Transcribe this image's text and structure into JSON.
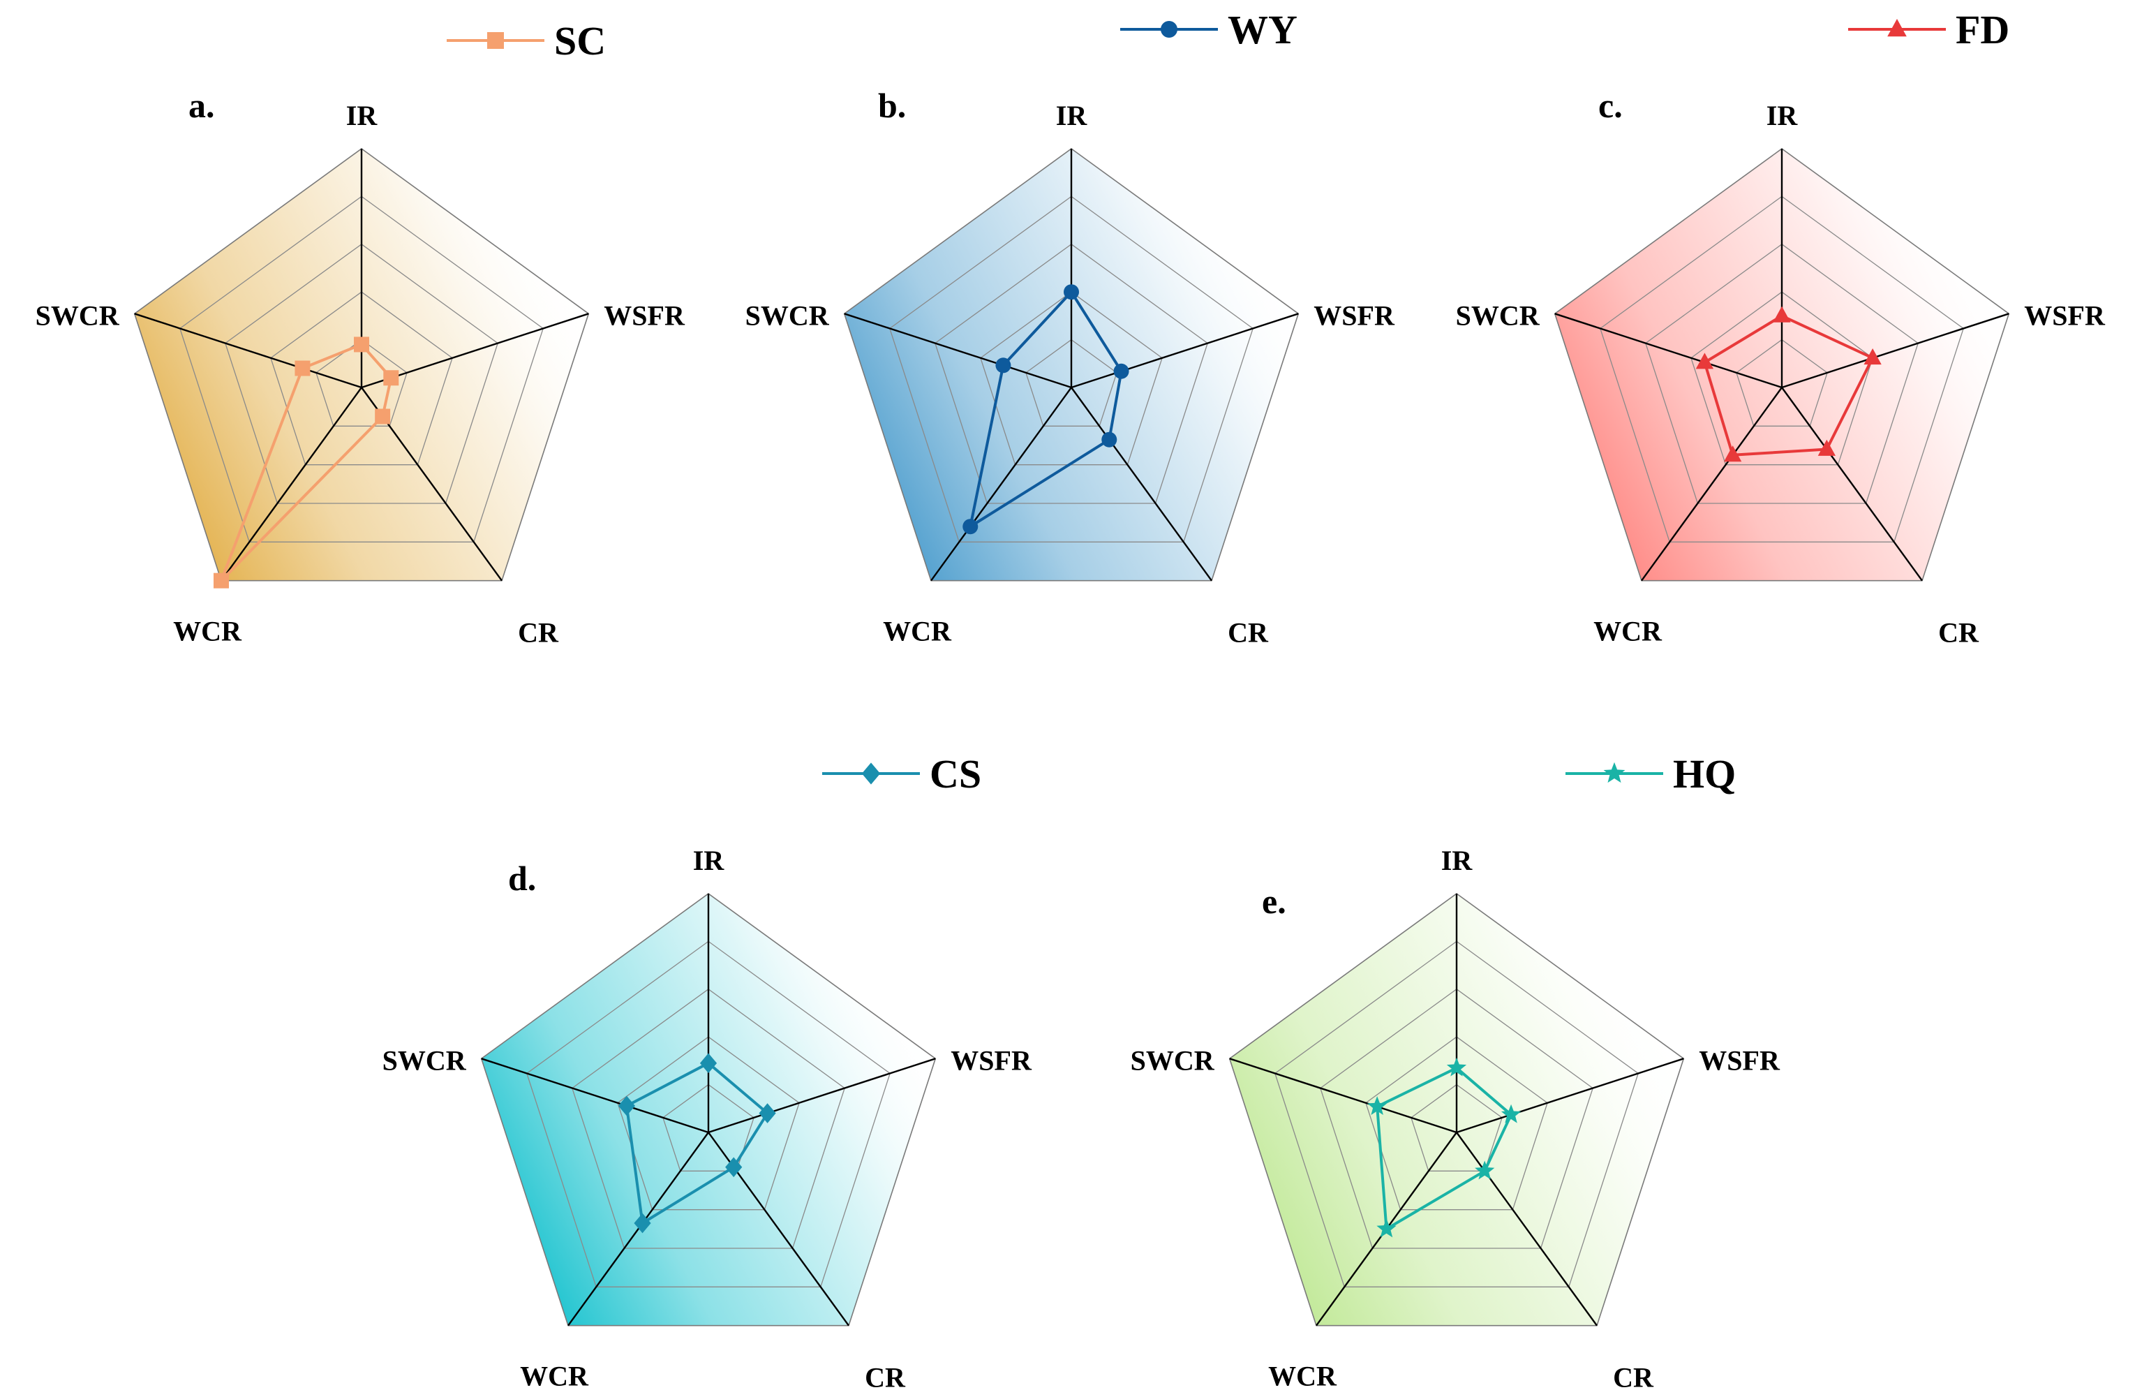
{
  "figure": {
    "axes": [
      "IR",
      "WSFR",
      "CR",
      "WCR",
      "SWCR"
    ],
    "rings": 5,
    "max_value": 5
  },
  "chart_data": [
    {
      "type": "radar",
      "panel": "a.",
      "series_name": "SC",
      "color": "#f5a06e",
      "marker": "square",
      "fill_color": "#e0a838",
      "axes": [
        "IR",
        "WSFR",
        "CR",
        "WCR",
        "SWCR"
      ],
      "values": [
        0.9,
        0.65,
        0.75,
        5.0,
        1.3
      ],
      "range": [
        0,
        5
      ]
    },
    {
      "type": "radar",
      "panel": "b.",
      "series_name": "WY",
      "color": "#0e5a9c",
      "marker": "circle",
      "fill_color": "#3a93c8",
      "axes": [
        "IR",
        "WSFR",
        "CR",
        "WCR",
        "SWCR"
      ],
      "values": [
        2.0,
        1.1,
        1.35,
        3.6,
        1.5
      ],
      "range": [
        0,
        5
      ]
    },
    {
      "type": "radar",
      "panel": "c.",
      "series_name": "FD",
      "color": "#e8393a",
      "marker": "triangle",
      "fill_color": "#ff7b76",
      "axes": [
        "IR",
        "WSFR",
        "CR",
        "WCR",
        "SWCR"
      ],
      "values": [
        1.5,
        2.0,
        1.6,
        1.75,
        1.7
      ],
      "range": [
        0,
        5
      ]
    },
    {
      "type": "radar",
      "panel": "d.",
      "series_name": "CS",
      "color": "#1a8fae",
      "marker": "diamond",
      "fill_color": "#00bcc9",
      "axes": [
        "IR",
        "WSFR",
        "CR",
        "WCR",
        "SWCR"
      ],
      "values": [
        1.45,
        1.3,
        0.9,
        2.35,
        1.8
      ],
      "range": [
        0,
        5
      ]
    },
    {
      "type": "radar",
      "panel": "e.",
      "series_name": "HQ",
      "color": "#1ab3a6",
      "marker": "star",
      "fill_color": "#b9e68a",
      "axes": [
        "IR",
        "WSFR",
        "CR",
        "WCR",
        "SWCR"
      ],
      "values": [
        1.35,
        1.2,
        1.0,
        2.5,
        1.75
      ],
      "range": [
        0,
        5
      ]
    }
  ]
}
